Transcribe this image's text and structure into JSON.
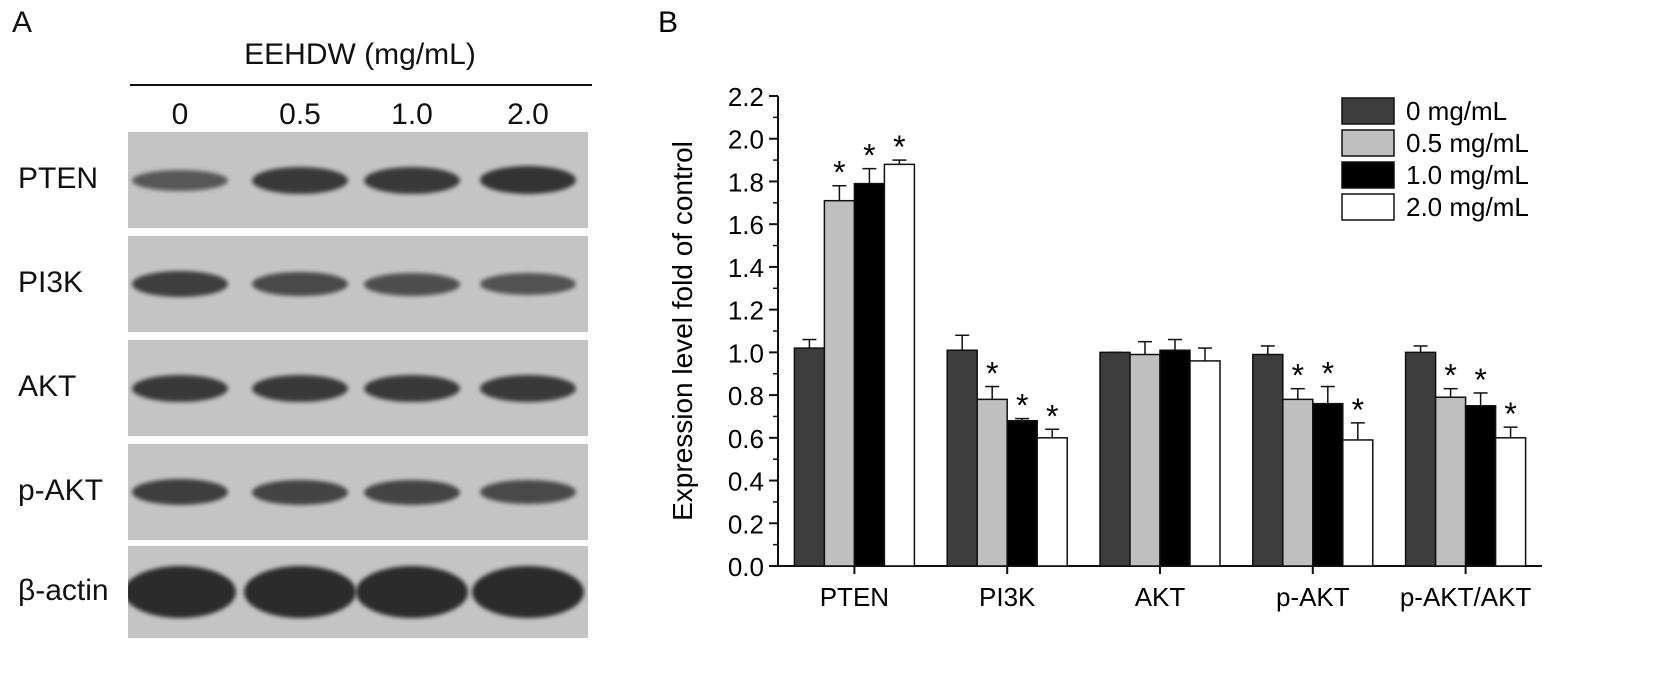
{
  "panel_a": {
    "label": "A",
    "treatment_title": "EEHDW (mg/mL)",
    "doses": [
      "0",
      "0.5",
      "1.0",
      "2.0"
    ],
    "blots": [
      {
        "label": "PTEN",
        "band_intensity": [
          0.55,
          0.85,
          0.85,
          0.9
        ]
      },
      {
        "label": "PI3K",
        "band_intensity": [
          0.8,
          0.7,
          0.65,
          0.6
        ]
      },
      {
        "label": "AKT",
        "band_intensity": [
          0.85,
          0.85,
          0.85,
          0.85
        ]
      },
      {
        "label": "p-AKT",
        "band_intensity": [
          0.8,
          0.75,
          0.75,
          0.7
        ]
      },
      {
        "label": "β-actin",
        "band_intensity": [
          1.0,
          1.0,
          1.0,
          1.0
        ]
      }
    ],
    "colors": {
      "membrane_bg": "#c4c4c4",
      "band": "#2b2b2b"
    }
  },
  "chart_data": {
    "panel_label": "B",
    "type": "bar",
    "ylabel": "Expression level fold of control",
    "xlabel": "",
    "ylim": [
      0,
      2.2
    ],
    "yticks": [
      "0.0",
      "0.2",
      "0.4",
      "0.6",
      "0.8",
      "1.0",
      "1.2",
      "1.4",
      "1.6",
      "1.8",
      "2.0",
      "2.2"
    ],
    "categories": [
      "PTEN",
      "PI3K",
      "AKT",
      "p-AKT",
      "p-AKT/AKT"
    ],
    "legend_position": "top-right",
    "series": [
      {
        "name": "0 mg/mL",
        "color": "#3d3d3d",
        "values": [
          1.02,
          1.01,
          1.0,
          0.99,
          1.0
        ],
        "errors": [
          0.04,
          0.07,
          0.0,
          0.04,
          0.03
        ],
        "significant": [
          false,
          false,
          false,
          false,
          false
        ]
      },
      {
        "name": "0.5 mg/mL",
        "color": "#bfbfbf",
        "values": [
          1.71,
          0.78,
          0.99,
          0.78,
          0.79
        ],
        "errors": [
          0.07,
          0.06,
          0.06,
          0.05,
          0.04
        ],
        "significant": [
          true,
          true,
          false,
          true,
          true
        ]
      },
      {
        "name": "1.0 mg/mL",
        "color": "#000000",
        "values": [
          1.79,
          0.68,
          1.01,
          0.76,
          0.75
        ],
        "errors": [
          0.07,
          0.01,
          0.05,
          0.08,
          0.06
        ],
        "significant": [
          true,
          true,
          false,
          true,
          true
        ]
      },
      {
        "name": "2.0 mg/mL",
        "color": "#ffffff",
        "values": [
          1.88,
          0.6,
          0.96,
          0.59,
          0.6
        ],
        "errors": [
          0.02,
          0.04,
          0.06,
          0.08,
          0.05
        ],
        "significant": [
          true,
          true,
          false,
          true,
          true
        ]
      }
    ],
    "significance_marker": "*"
  }
}
